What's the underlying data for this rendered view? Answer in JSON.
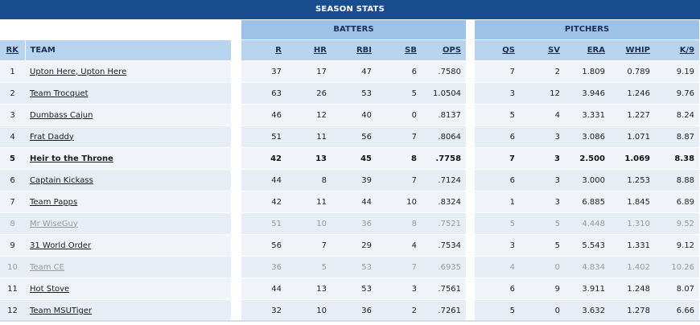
{
  "title": "SEASON STATS",
  "groups": {
    "batters": "BATTERS",
    "pitchers": "PITCHERS"
  },
  "columns": {
    "rk": "RK",
    "team": "TEAM",
    "r": "R",
    "hr": "HR",
    "rbi": "RBI",
    "sb": "SB",
    "ops": "OPS",
    "qs": "QS",
    "sv": "SV",
    "era": "ERA",
    "whip": "WHIP",
    "k9": "K/9"
  },
  "rows": [
    {
      "rk": "1",
      "team": "Upton Here, Upton Here",
      "r": "37",
      "hr": "17",
      "rbi": "47",
      "sb": "6",
      "ops": ".7580",
      "qs": "7",
      "sv": "2",
      "era": "1.809",
      "whip": "0.789",
      "k9": "9.19"
    },
    {
      "rk": "2",
      "team": "Team Trocquet",
      "r": "63",
      "hr": "26",
      "rbi": "53",
      "sb": "5",
      "ops": "1.0504",
      "qs": "3",
      "sv": "12",
      "era": "3.946",
      "whip": "1.246",
      "k9": "9.76"
    },
    {
      "rk": "3",
      "team": "Dumbass Cajun",
      "r": "46",
      "hr": "12",
      "rbi": "40",
      "sb": "0",
      "ops": ".8137",
      "qs": "5",
      "sv": "4",
      "era": "3.331",
      "whip": "1.227",
      "k9": "8.24"
    },
    {
      "rk": "4",
      "team": "Frat Daddy",
      "r": "51",
      "hr": "11",
      "rbi": "56",
      "sb": "7",
      "ops": ".8064",
      "qs": "6",
      "sv": "3",
      "era": "3.086",
      "whip": "1.071",
      "k9": "8.87"
    },
    {
      "rk": "5",
      "team": "Heir to the Throne",
      "r": "42",
      "hr": "13",
      "rbi": "45",
      "sb": "8",
      "ops": ".7758",
      "qs": "7",
      "sv": "3",
      "era": "2.500",
      "whip": "1.069",
      "k9": "8.38"
    },
    {
      "rk": "6",
      "team": "Captain Kickass",
      "r": "44",
      "hr": "8",
      "rbi": "39",
      "sb": "7",
      "ops": ".7124",
      "qs": "6",
      "sv": "3",
      "era": "3.000",
      "whip": "1.253",
      "k9": "8.88"
    },
    {
      "rk": "7",
      "team": "Team Papps",
      "r": "42",
      "hr": "11",
      "rbi": "44",
      "sb": "10",
      "ops": ".8324",
      "qs": "1",
      "sv": "3",
      "era": "6.885",
      "whip": "1.845",
      "k9": "6.89"
    },
    {
      "rk": "8",
      "team": "Mr WiseGuy",
      "r": "51",
      "hr": "10",
      "rbi": "36",
      "sb": "8",
      "ops": ".7521",
      "qs": "5",
      "sv": "5",
      "era": "4.448",
      "whip": "1.310",
      "k9": "9.52"
    },
    {
      "rk": "9",
      "team": "31 World Order",
      "r": "56",
      "hr": "7",
      "rbi": "29",
      "sb": "4",
      "ops": ".7534",
      "qs": "3",
      "sv": "5",
      "era": "5.543",
      "whip": "1.331",
      "k9": "9.12"
    },
    {
      "rk": "10",
      "team": "Team CE",
      "r": "36",
      "hr": "5",
      "rbi": "53",
      "sb": "7",
      "ops": ".6935",
      "qs": "4",
      "sv": "0",
      "era": "4.834",
      "whip": "1.402",
      "k9": "10.26"
    },
    {
      "rk": "11",
      "team": "Hot Stove",
      "r": "44",
      "hr": "13",
      "rbi": "53",
      "sb": "3",
      "ops": ".7561",
      "qs": "6",
      "sv": "9",
      "era": "3.911",
      "whip": "1.248",
      "k9": "8.07"
    },
    {
      "rk": "12",
      "team": "Team MSUTiger",
      "r": "32",
      "hr": "10",
      "rbi": "36",
      "sb": "2",
      "ops": ".7261",
      "qs": "5",
      "sv": "0",
      "era": "3.632",
      "whip": "1.278",
      "k9": "6.66"
    }
  ]
}
